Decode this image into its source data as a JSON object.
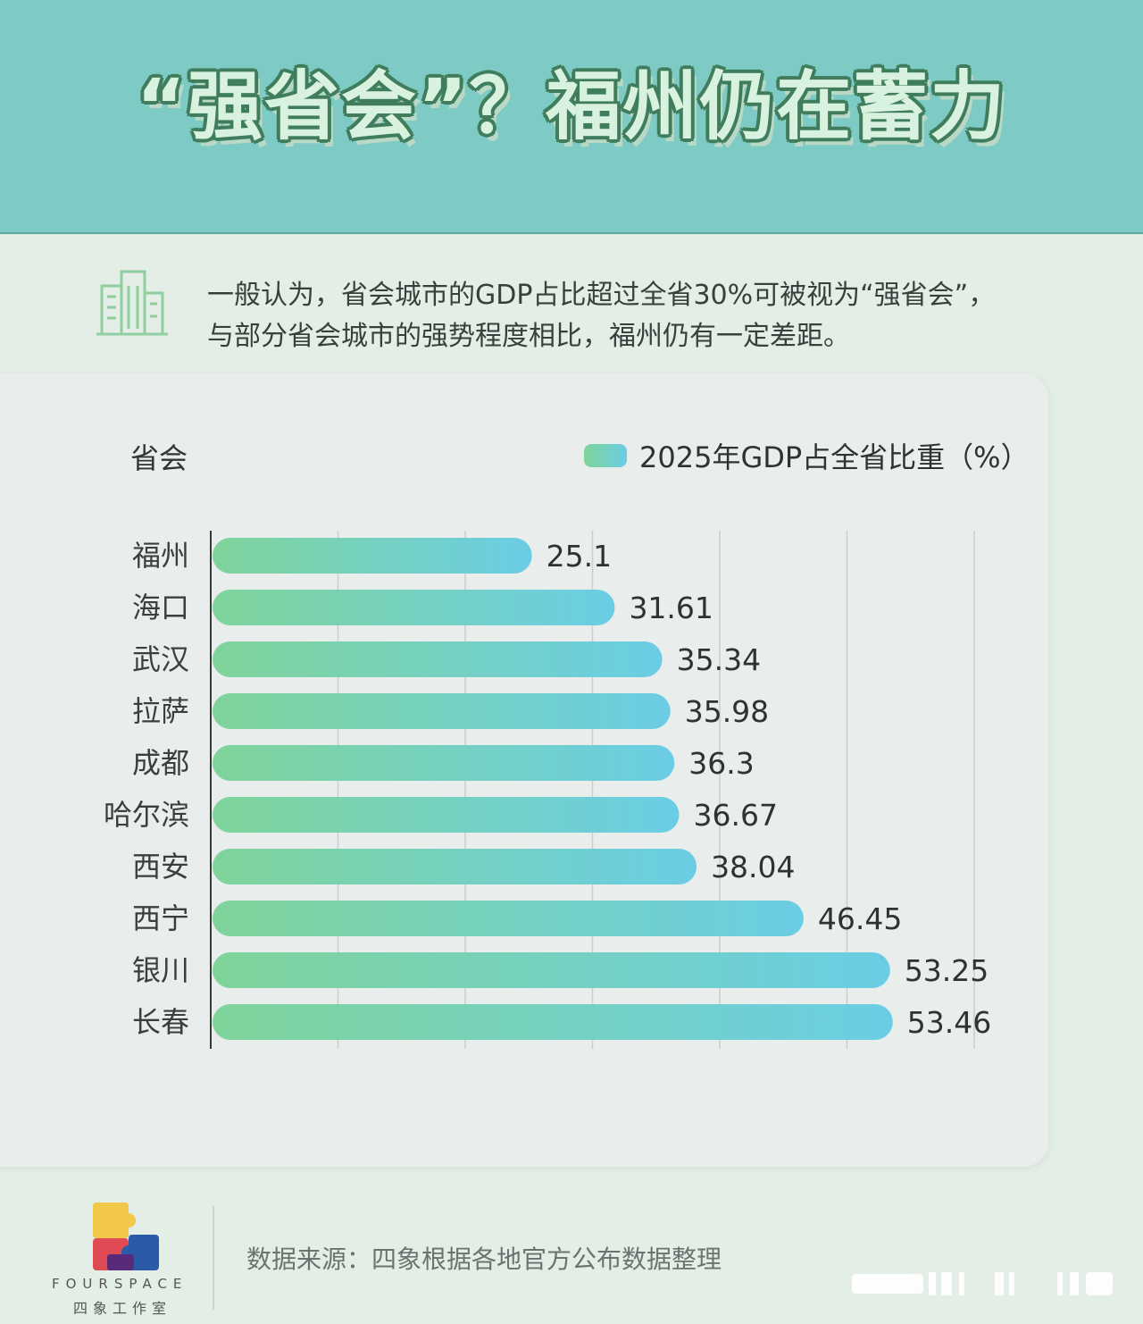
{
  "header": {
    "title": "“强省会”？福州仍在蓄力"
  },
  "intro": {
    "line1": "一般认为，省会城市的GDP占比超过全省30%可被视为“强省会”，",
    "line2": "与部分省会城市的强势程度相比，福州仍有一定差距。"
  },
  "icons": {
    "intro_icon": "building-icon",
    "logo": "fourspace-puzzle-logo"
  },
  "colors": {
    "header_bg": "#7ecbc6",
    "bar_start": "#7fd49a",
    "bar_end": "#6bcde4"
  },
  "chart_data": {
    "type": "bar",
    "orientation": "horizontal",
    "ylabel": "省会",
    "categories": [
      "福州",
      "海口",
      "武汉",
      "拉萨",
      "成都",
      "哈尔滨",
      "西安",
      "西宁",
      "银川",
      "长春"
    ],
    "series": [
      {
        "name": "2025年GDP占全省比重（%）",
        "values": [
          25.1,
          31.61,
          35.34,
          35.98,
          36.3,
          36.67,
          38.04,
          46.45,
          53.25,
          53.46
        ]
      }
    ],
    "value_labels": [
      "25.1",
      "31.61",
      "35.34",
      "35.98",
      "36.3",
      "36.67",
      "38.04",
      "46.45",
      "53.25",
      "53.46"
    ],
    "xlim": [
      0,
      60
    ],
    "grid": true,
    "legend_position": "top-right"
  },
  "footer": {
    "brand_en": "FOURSPACE",
    "brand_cn": "四象工作室",
    "source": "数据来源：四象根据各地官方公布数据整理"
  }
}
